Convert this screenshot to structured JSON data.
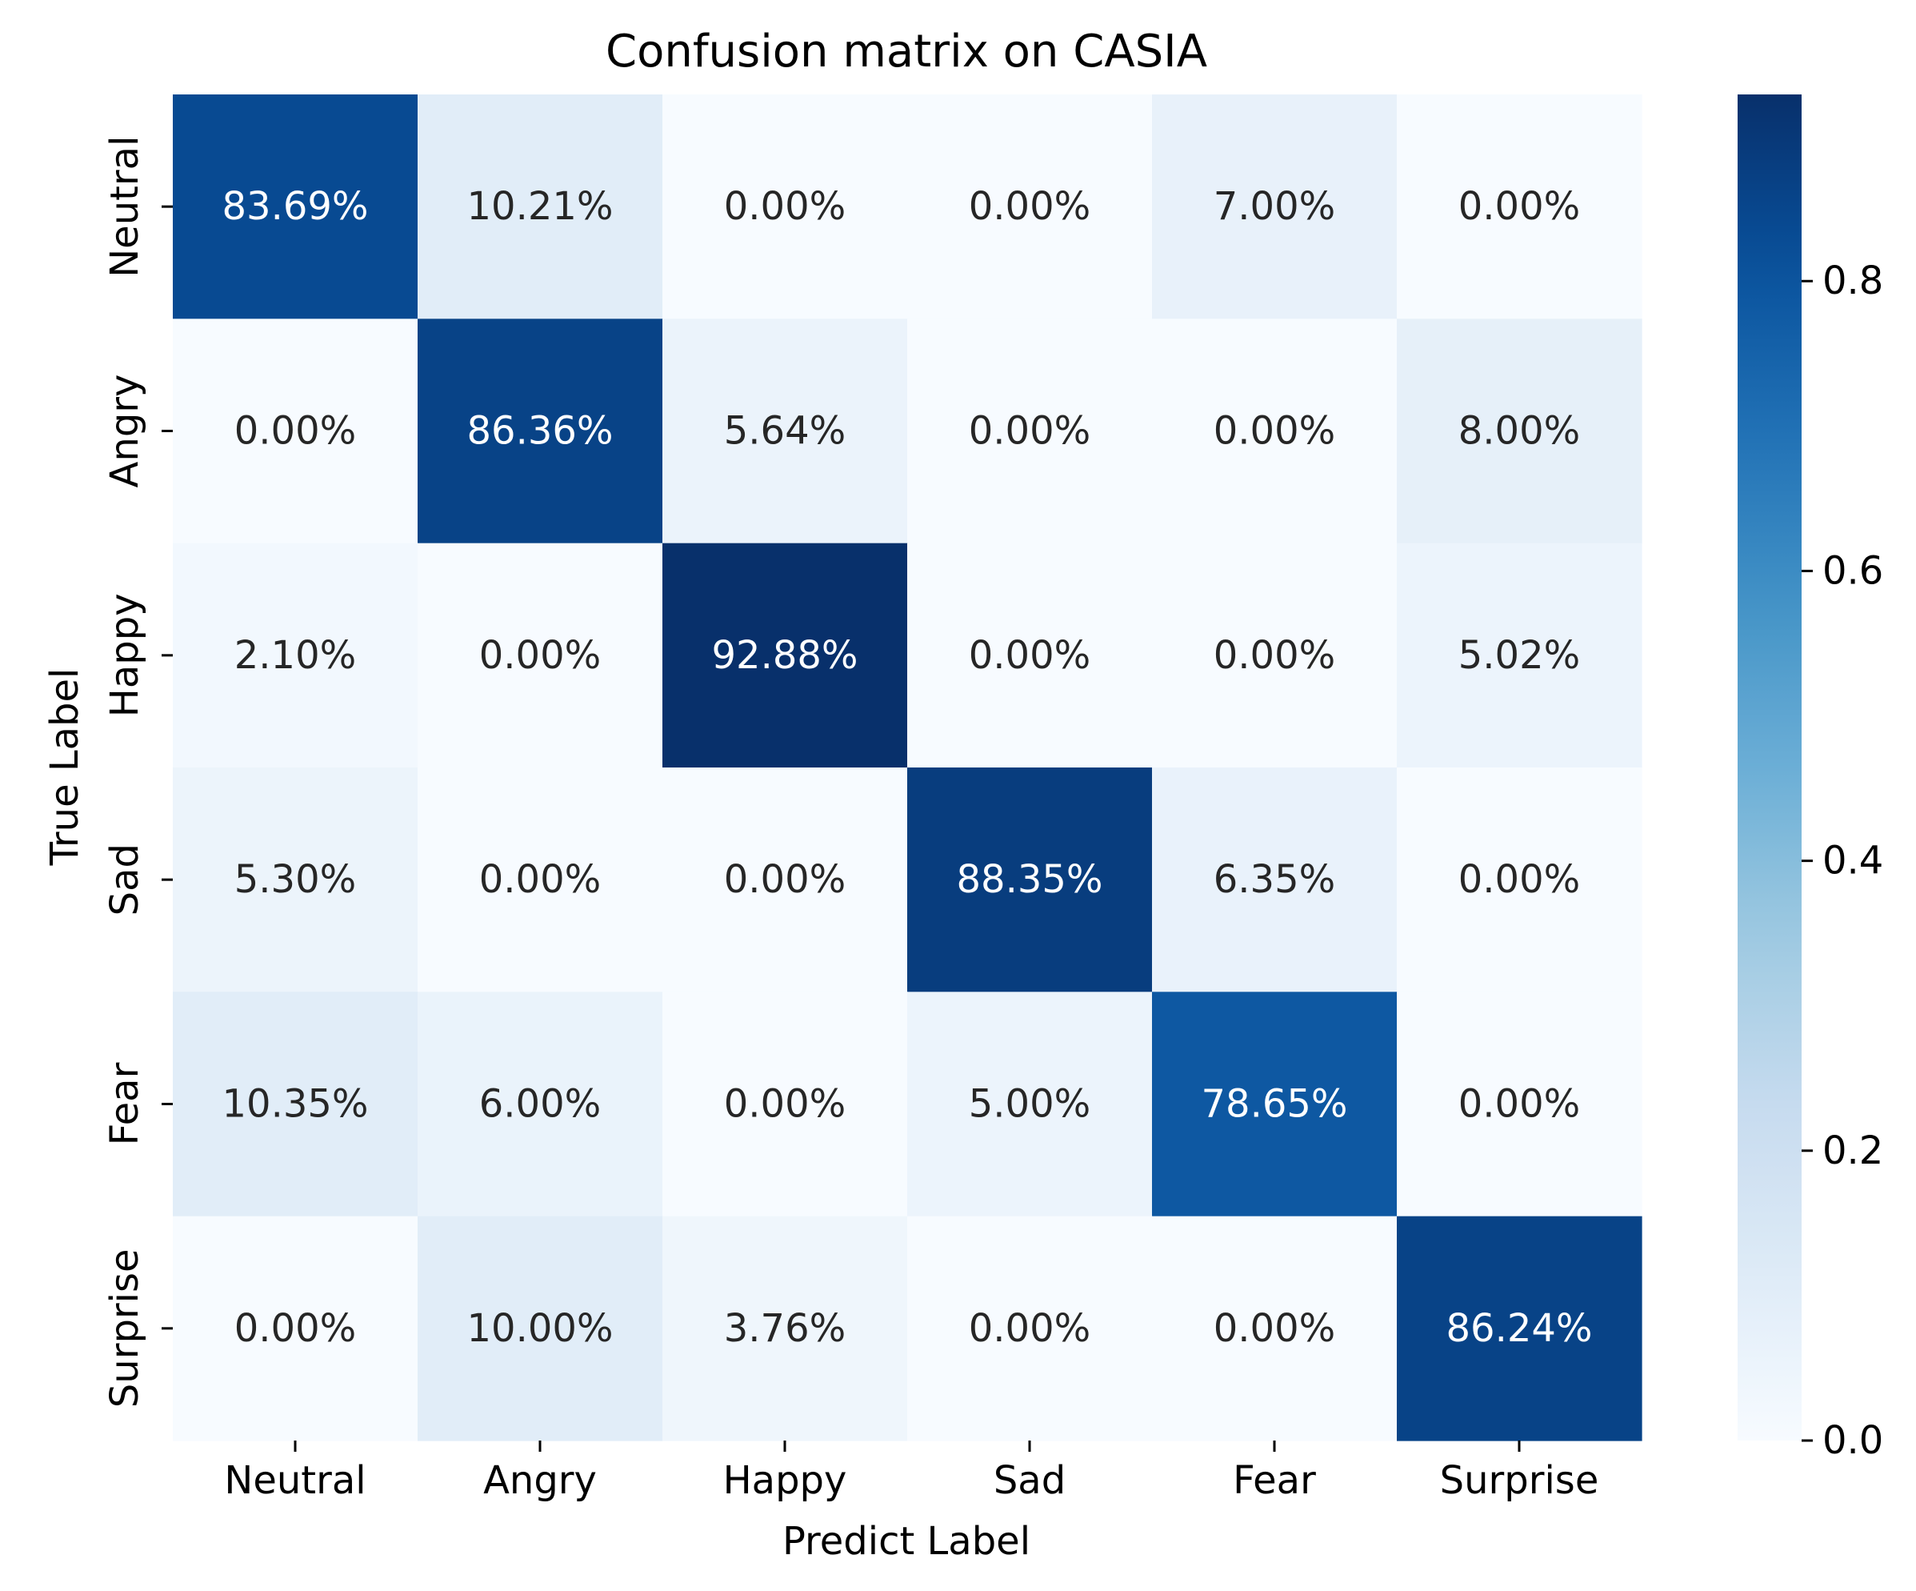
{
  "chart_data": {
    "type": "heatmap",
    "title": "Confusion matrix on CASIA",
    "xlabel": "Predict Label",
    "ylabel": "True Label",
    "x_categories": [
      "Neutral",
      "Angry",
      "Happy",
      "Sad",
      "Fear",
      "Surprise"
    ],
    "y_categories": [
      "Neutral",
      "Angry",
      "Happy",
      "Sad",
      "Fear",
      "Surprise"
    ],
    "values": [
      [
        0.8369,
        0.1021,
        0.0,
        0.0,
        0.07,
        0.0
      ],
      [
        0.0,
        0.8636,
        0.0564,
        0.0,
        0.0,
        0.08
      ],
      [
        0.021,
        0.0,
        0.9288,
        0.0,
        0.0,
        0.0502
      ],
      [
        0.053,
        0.0,
        0.0,
        0.8835,
        0.0635,
        0.0
      ],
      [
        0.1035,
        0.06,
        0.0,
        0.05,
        0.7865,
        0.0
      ],
      [
        0.0,
        0.1,
        0.0376,
        0.0,
        0.0,
        0.8624
      ]
    ],
    "cell_labels": [
      [
        "83.69%",
        "10.21%",
        "0.00%",
        "0.00%",
        "7.00%",
        "0.00%"
      ],
      [
        "0.00%",
        "86.36%",
        "5.64%",
        "0.00%",
        "0.00%",
        "8.00%"
      ],
      [
        "2.10%",
        "0.00%",
        "92.88%",
        "0.00%",
        "0.00%",
        "5.02%"
      ],
      [
        "5.30%",
        "0.00%",
        "0.00%",
        "88.35%",
        "6.35%",
        "0.00%"
      ],
      [
        "10.35%",
        "6.00%",
        "0.00%",
        "5.00%",
        "78.65%",
        "0.00%"
      ],
      [
        "0.00%",
        "10.00%",
        "3.76%",
        "0.00%",
        "0.00%",
        "86.24%"
      ]
    ],
    "colormap": "Blues",
    "color_range": [
      0.0,
      0.9288
    ],
    "colorbar_ticks": [
      0.0,
      0.2,
      0.4,
      0.6,
      0.8
    ],
    "colorbar_tick_labels": [
      "0.0",
      "0.2",
      "0.4",
      "0.6",
      "0.8"
    ]
  }
}
